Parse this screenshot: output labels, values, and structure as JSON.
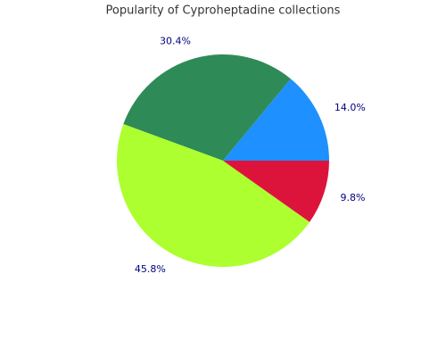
{
  "chart_data": {
    "type": "pie",
    "title": "Popularity of Cyproheptadine collections",
    "values": [
      14.0,
      30.4,
      45.8,
      9.8
    ],
    "value_labels": [
      "14.0%",
      "30.4%",
      "45.8%",
      "9.8%"
    ],
    "colors": [
      "#1e90ff",
      "#2e8b57",
      "#adff2f",
      "#dc143c"
    ]
  }
}
